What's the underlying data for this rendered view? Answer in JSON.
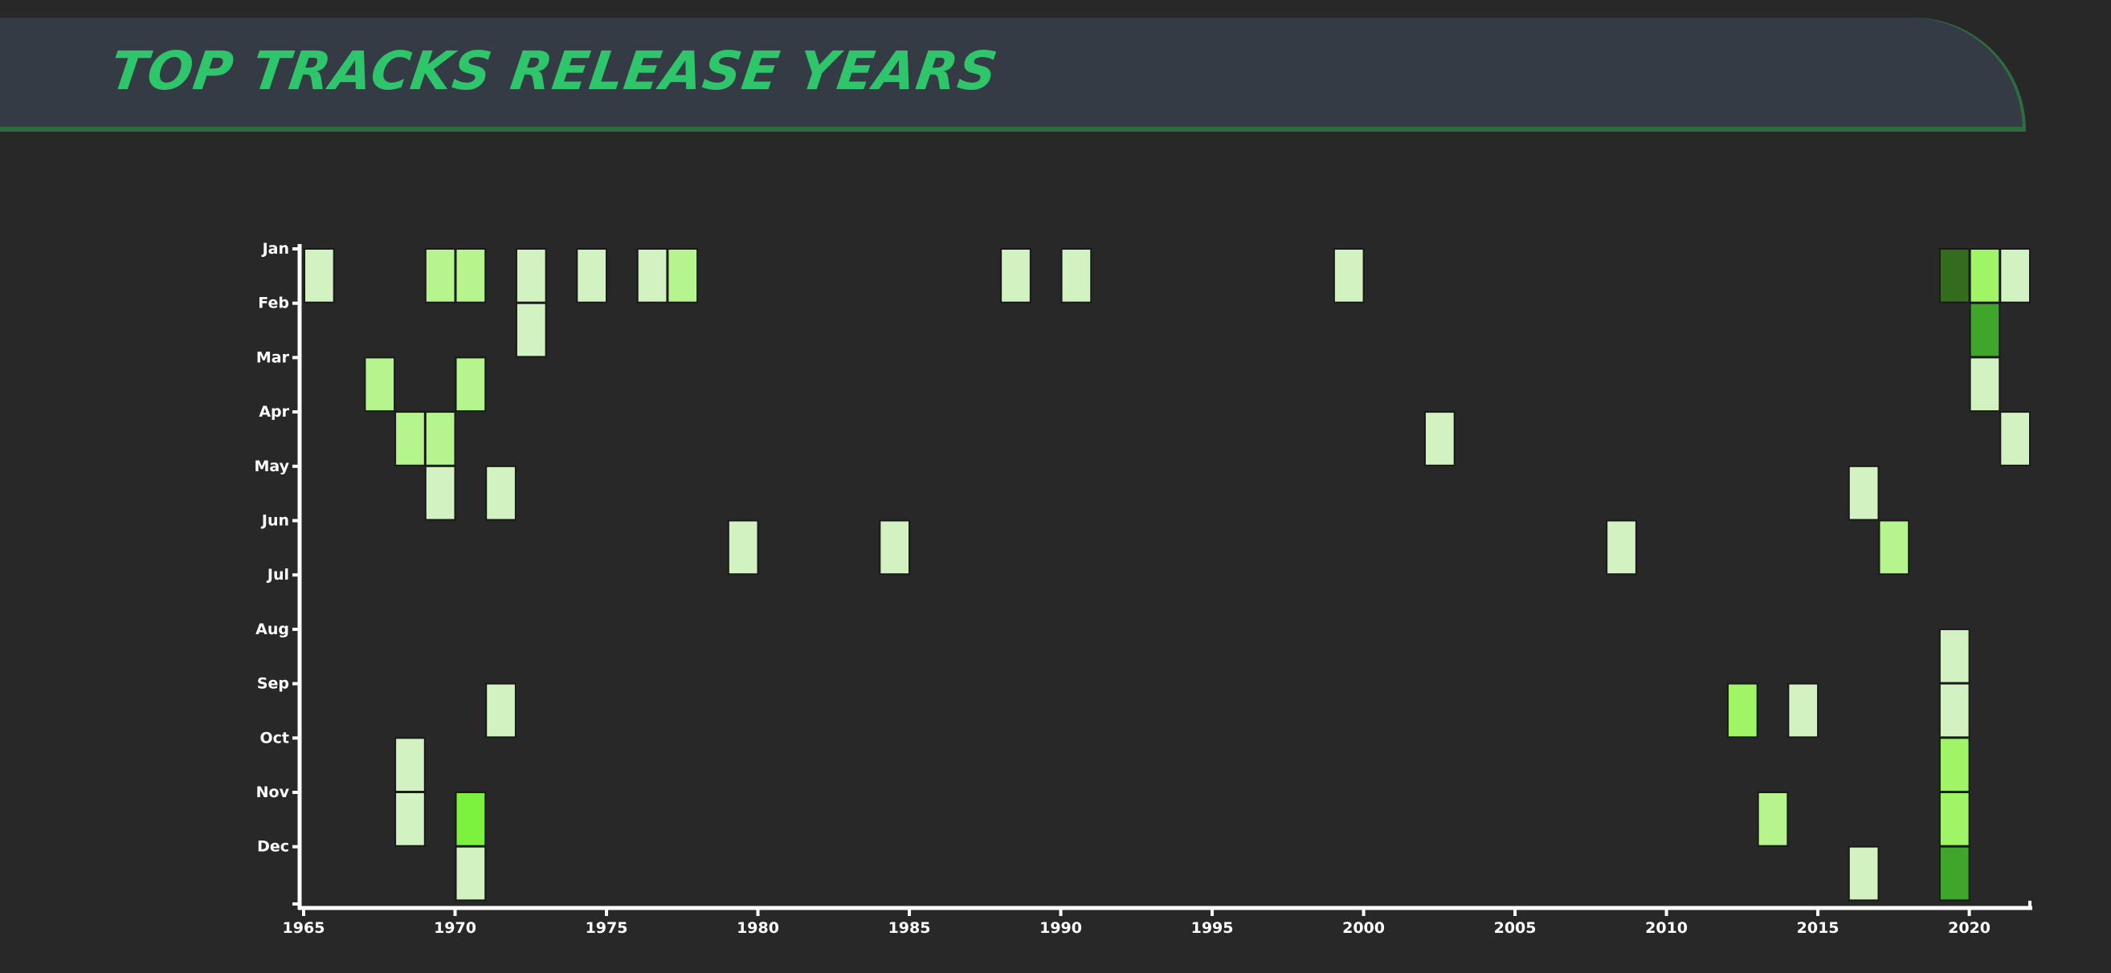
{
  "header": {
    "title": "TOP TRACKS RELEASE YEARS"
  },
  "colors": {
    "background": "#282828",
    "header_bg": "#343b45",
    "header_border": "#2c6e3e",
    "title": "#2fc56b",
    "axis": "#ffffff",
    "cell_stroke": "#1a1a1a"
  },
  "chart_data": {
    "type": "heatmap",
    "title": "TOP TRACKS RELEASE YEARS",
    "xlabel": "",
    "ylabel": "",
    "x_ticks": [
      1965,
      1970,
      1975,
      1980,
      1985,
      1990,
      1995,
      2000,
      2005,
      2010,
      2015,
      2020
    ],
    "x_range": [
      1965,
      2022
    ],
    "y_categories": [
      "Jan",
      "Feb",
      "Mar",
      "Apr",
      "May",
      "Jun",
      "Jul",
      "Aug",
      "Sep",
      "Oct",
      "Nov",
      "Dec"
    ],
    "grid": false,
    "legend": "none",
    "color_scale": [
      "#d2f2c2",
      "#b6f58e",
      "#9ff566",
      "#7df23e",
      "#3fa62b",
      "#336b1f"
    ],
    "cells": [
      {
        "year": 1965,
        "month": "Jan",
        "count": 1
      },
      {
        "year": 1969,
        "month": "Jan",
        "count": 2
      },
      {
        "year": 1970,
        "month": "Jan",
        "count": 2
      },
      {
        "year": 1972,
        "month": "Jan",
        "count": 1
      },
      {
        "year": 1974,
        "month": "Jan",
        "count": 1
      },
      {
        "year": 1976,
        "month": "Jan",
        "count": 1
      },
      {
        "year": 1977,
        "month": "Jan",
        "count": 2
      },
      {
        "year": 1988,
        "month": "Jan",
        "count": 1
      },
      {
        "year": 1990,
        "month": "Jan",
        "count": 1
      },
      {
        "year": 1999,
        "month": "Jan",
        "count": 1
      },
      {
        "year": 2019,
        "month": "Jan",
        "count": 6
      },
      {
        "year": 2020,
        "month": "Jan",
        "count": 3
      },
      {
        "year": 2021,
        "month": "Jan",
        "count": 1
      },
      {
        "year": 1972,
        "month": "Feb",
        "count": 1
      },
      {
        "year": 2020,
        "month": "Feb",
        "count": 5
      },
      {
        "year": 1967,
        "month": "Mar",
        "count": 2
      },
      {
        "year": 1970,
        "month": "Mar",
        "count": 2
      },
      {
        "year": 2020,
        "month": "Mar",
        "count": 1
      },
      {
        "year": 1968,
        "month": "Apr",
        "count": 2
      },
      {
        "year": 1969,
        "month": "Apr",
        "count": 2
      },
      {
        "year": 2002,
        "month": "Apr",
        "count": 1
      },
      {
        "year": 2021,
        "month": "Apr",
        "count": 1
      },
      {
        "year": 1969,
        "month": "May",
        "count": 1
      },
      {
        "year": 1971,
        "month": "May",
        "count": 1
      },
      {
        "year": 2016,
        "month": "May",
        "count": 1
      },
      {
        "year": 1979,
        "month": "Jun",
        "count": 1
      },
      {
        "year": 1984,
        "month": "Jun",
        "count": 1
      },
      {
        "year": 2008,
        "month": "Jun",
        "count": 1
      },
      {
        "year": 2017,
        "month": "Jun",
        "count": 2
      },
      {
        "year": 2019,
        "month": "Aug",
        "count": 1
      },
      {
        "year": 1971,
        "month": "Sep",
        "count": 1
      },
      {
        "year": 2012,
        "month": "Sep",
        "count": 3
      },
      {
        "year": 2014,
        "month": "Sep",
        "count": 1
      },
      {
        "year": 2019,
        "month": "Sep",
        "count": 1
      },
      {
        "year": 1968,
        "month": "Oct",
        "count": 1
      },
      {
        "year": 2019,
        "month": "Oct",
        "count": 3
      },
      {
        "year": 1968,
        "month": "Nov",
        "count": 1
      },
      {
        "year": 1970,
        "month": "Nov",
        "count": 4
      },
      {
        "year": 2013,
        "month": "Nov",
        "count": 2
      },
      {
        "year": 2019,
        "month": "Nov",
        "count": 3
      },
      {
        "year": 1970,
        "month": "Dec",
        "count": 1
      },
      {
        "year": 2016,
        "month": "Dec",
        "count": 1
      },
      {
        "year": 2019,
        "month": "Dec",
        "count": 5
      }
    ]
  }
}
